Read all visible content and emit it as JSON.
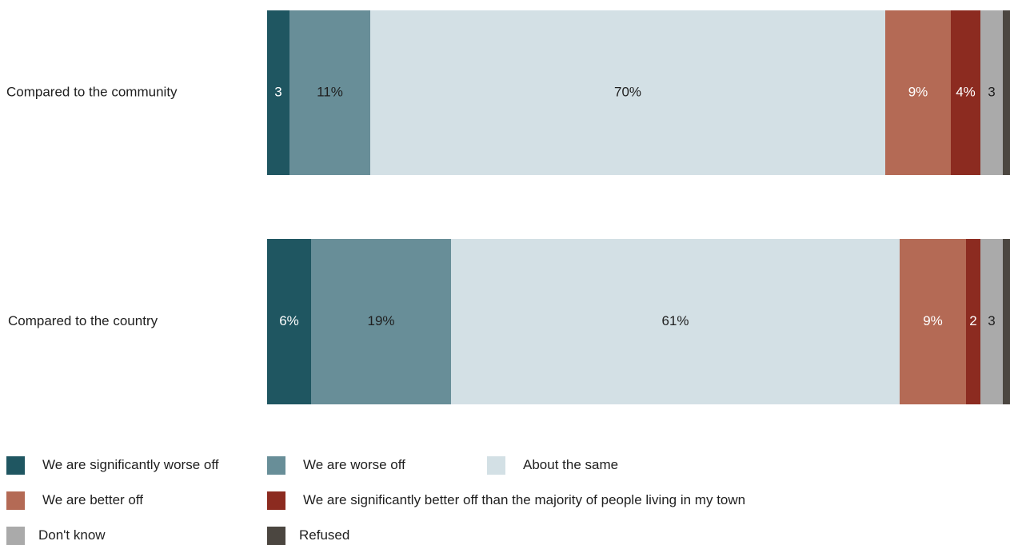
{
  "chart_data": {
    "type": "bar",
    "orientation": "horizontal",
    "stacked": true,
    "normalized_to_percent": true,
    "grid": false,
    "legend_position": "bottom",
    "categories": [
      "Compared to the community",
      "Compared to the country"
    ],
    "series": [
      {
        "name": "We are significantly worse off",
        "color": "#1f5661",
        "values": [
          3,
          6
        ],
        "labels": [
          "3",
          "6%"
        ],
        "label_color": "#ffffff"
      },
      {
        "name": "We are worse off",
        "color": "#688e98",
        "values": [
          11,
          19
        ],
        "labels": [
          "11%",
          "19%"
        ],
        "label_color": "#1f1f1f"
      },
      {
        "name": "About the same",
        "color": "#d3e0e5",
        "values": [
          70,
          61
        ],
        "labels": [
          "70%",
          "61%"
        ],
        "label_color": "#1f1f1f"
      },
      {
        "name": "We are better off",
        "color": "#b46a55",
        "values": [
          9,
          9
        ],
        "labels": [
          "9%",
          "9%"
        ],
        "label_color": "#ffffff"
      },
      {
        "name": "We are significantly better off than the majority of people living in my town",
        "color": "#8c2b20",
        "values": [
          4,
          2
        ],
        "labels": [
          "4%",
          "2"
        ],
        "label_color": "#ffffff"
      },
      {
        "name": "Don't know",
        "color": "#aaaaaa",
        "values": [
          3,
          3
        ],
        "labels": [
          "3",
          "3"
        ],
        "label_color": "#1f1f1f"
      },
      {
        "name": "Refused",
        "color": "#4b4640",
        "values": [
          1,
          1
        ],
        "labels": [
          "",
          ""
        ],
        "label_color": "#ffffff"
      }
    ]
  },
  "legend": {
    "items": [
      {
        "label": "We are significantly worse off",
        "color": "#1f5661"
      },
      {
        "label": "We are worse off",
        "color": "#688e98"
      },
      {
        "label": "About the same",
        "color": "#d3e0e5"
      },
      {
        "label": "We are better off",
        "color": "#b46a55"
      },
      {
        "label": "We are significantly better off than the majority of people living in my town",
        "color": "#8c2b20"
      },
      {
        "label": "Don't know",
        "color": "#aaaaaa"
      },
      {
        "label": "Refused",
        "color": "#4b4640"
      }
    ]
  }
}
